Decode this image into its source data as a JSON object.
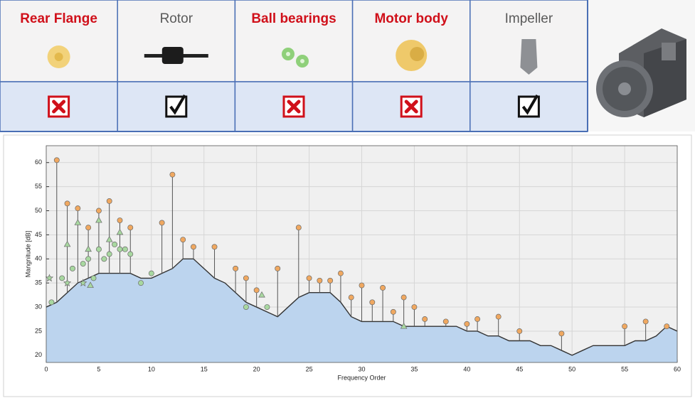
{
  "components": [
    {
      "label": "Rear Flange",
      "color": "#d0101a",
      "checked": false
    },
    {
      "label": "Rotor",
      "color": "#5a5a5a",
      "checked": true
    },
    {
      "label": "Ball bearings",
      "color": "#d0101a",
      "checked": false
    },
    {
      "label": "Motor body",
      "color": "#d0101a",
      "checked": false
    },
    {
      "label": "Impeller",
      "color": "#5a5a5a",
      "checked": true
    }
  ],
  "chart_data": {
    "type": "spectrum",
    "x_label": "Frequency Order",
    "y_label": "Mangnitude [dB]",
    "xlim": [
      0,
      60
    ],
    "ylim": [
      18.5,
      63.5
    ],
    "xticks": [
      0,
      5,
      10,
      15,
      20,
      25,
      30,
      35,
      40,
      45,
      50,
      55,
      60
    ],
    "yticks": [
      20,
      25,
      30,
      35,
      40,
      45,
      50,
      55,
      60
    ],
    "grid": true,
    "spectrum": {
      "color": "#333333",
      "fill": "#bcd4ee",
      "x": [
        0,
        1,
        2,
        3,
        4,
        5,
        6,
        7,
        8,
        9,
        10,
        11,
        12,
        13,
        14,
        15,
        16,
        17,
        18,
        19,
        20,
        21,
        22,
        23,
        24,
        25,
        26,
        27,
        28,
        29,
        30,
        31,
        32,
        33,
        34,
        35,
        36,
        37,
        38,
        39,
        40,
        41,
        42,
        43,
        44,
        45,
        46,
        47,
        48,
        49,
        50,
        51,
        52,
        53,
        54,
        55,
        56,
        57,
        58,
        59,
        60
      ],
      "values": [
        30,
        31,
        33,
        35,
        36,
        37,
        37,
        37,
        37,
        36,
        36,
        37,
        38,
        40,
        40,
        38,
        36,
        35,
        33,
        31,
        30,
        29,
        28,
        30,
        32,
        33,
        33,
        33,
        31,
        28,
        27,
        27,
        27,
        27,
        26,
        26,
        26,
        26,
        26,
        26,
        25,
        25,
        24,
        24,
        23,
        23,
        23,
        22,
        22,
        21,
        20,
        21,
        22,
        22,
        22,
        22,
        23,
        23,
        24,
        26,
        25
      ]
    },
    "series": [
      {
        "marker": "circle",
        "color": "#f0a860",
        "stem": true,
        "x": [
          1,
          2,
          3,
          4,
          5,
          6,
          7,
          8,
          11,
          12,
          13,
          14,
          16,
          18,
          19,
          20,
          22,
          24,
          25,
          26,
          27,
          28,
          29,
          30,
          31,
          32,
          33,
          34,
          35,
          36,
          38,
          40,
          41,
          43,
          45,
          49,
          55,
          57,
          59
        ],
        "values": [
          60.5,
          51.5,
          50.5,
          46.5,
          50,
          52,
          48,
          46.5,
          47.5,
          57.5,
          44,
          42.5,
          42.5,
          38,
          36,
          33.5,
          38,
          46.5,
          36,
          35.5,
          35.5,
          37,
          32,
          34.5,
          31,
          34,
          29,
          32,
          30,
          27.5,
          27,
          26.5,
          27.5,
          28,
          25,
          24.5,
          26,
          27,
          26
        ]
      },
      {
        "marker": "circle",
        "color": "#a8d8a0",
        "stem": false,
        "x": [
          0.5,
          1.5,
          2.5,
          3.5,
          4,
          4.5,
          5,
          5.5,
          6,
          6.5,
          7,
          7.5,
          8,
          9,
          10,
          19,
          21
        ],
        "values": [
          31,
          36,
          38,
          39,
          40,
          36,
          42,
          40,
          41,
          43,
          42,
          42,
          41,
          35,
          37,
          30,
          30
        ]
      },
      {
        "marker": "triangle",
        "color": "#a8d8a0",
        "stem": false,
        "x": [
          2,
          3,
          4,
          5,
          6,
          7,
          4.2,
          20.5,
          34
        ],
        "values": [
          43,
          47.5,
          42,
          48,
          44,
          45.5,
          34.5,
          32.5,
          26
        ]
      },
      {
        "marker": "star",
        "color": "#a8d8a0",
        "stem": false,
        "x": [
          0.3,
          2,
          3.5
        ],
        "values": [
          36,
          35,
          35
        ]
      }
    ]
  }
}
